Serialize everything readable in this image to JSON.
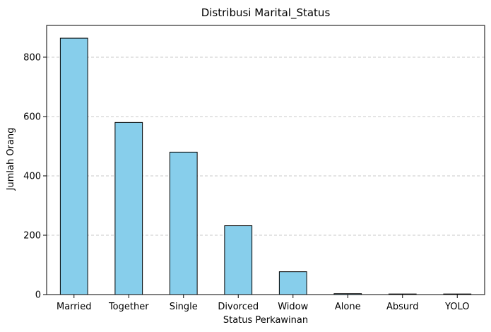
{
  "chart_data": {
    "type": "bar",
    "title": "Distribusi Marital_Status",
    "xlabel": "Status Perkawinan",
    "ylabel": "Jumlah Orang",
    "categories": [
      "Married",
      "Together",
      "Single",
      "Divorced",
      "Widow",
      "Alone",
      "Absurd",
      "YOLO"
    ],
    "values": [
      864,
      580,
      480,
      232,
      77,
      3,
      2,
      2
    ],
    "ylim": [
      0,
      907
    ],
    "yticks": [
      0,
      200,
      400,
      600,
      800
    ],
    "grid": "y-dashed",
    "bar_color": "#87CEEB",
    "edge_color": "#000000",
    "grid_color": "#c8c8c8"
  }
}
